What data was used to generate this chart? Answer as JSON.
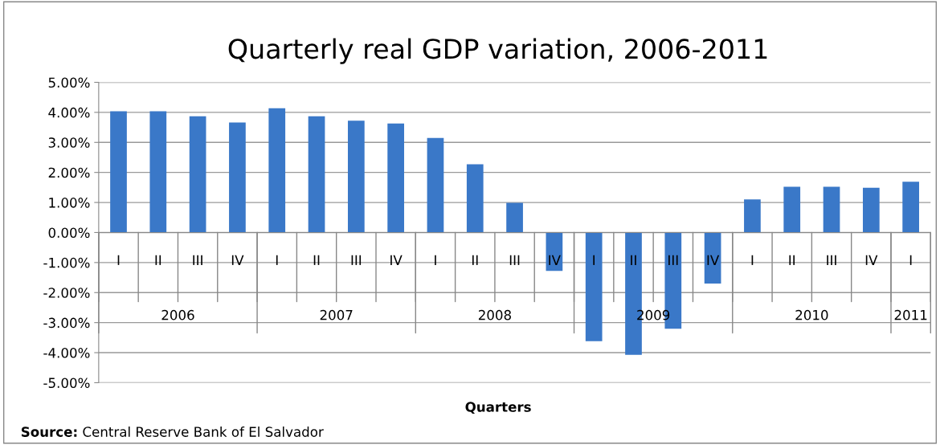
{
  "chart_data": {
    "type": "bar",
    "title": "Quarterly real GDP variation, 2006-2011",
    "xlabel": "Quarters",
    "categories": [
      "I",
      "II",
      "III",
      "IV",
      "I",
      "II",
      "III",
      "IV",
      "I",
      "II",
      "III",
      "IV",
      "I",
      "II",
      "III",
      "IV",
      "I",
      "II",
      "III",
      "IV",
      "I"
    ],
    "values": [
      4.04,
      4.04,
      3.87,
      3.66,
      4.14,
      3.87,
      3.72,
      3.63,
      3.15,
      2.27,
      0.99,
      -1.28,
      -3.62,
      -4.07,
      -3.2,
      -1.7,
      1.1,
      1.52,
      1.52,
      1.49,
      1.69
    ],
    "color": "#3a78c8",
    "ylim": [
      -5,
      5
    ],
    "yticks": [
      {
        "value": -5,
        "label": "-5.00%"
      },
      {
        "value": -4,
        "label": "-4.00%"
      },
      {
        "value": -3,
        "label": "-3.00%"
      },
      {
        "value": -2,
        "label": "-2.00%"
      },
      {
        "value": -1,
        "label": "-1.00%"
      },
      {
        "value": 0,
        "label": "0.00%"
      },
      {
        "value": 1,
        "label": "1.00%"
      },
      {
        "value": 2,
        "label": "2.00%"
      },
      {
        "value": 3,
        "label": "3.00%"
      },
      {
        "value": 4,
        "label": "4.00%"
      },
      {
        "value": 5,
        "label": "5.00%"
      }
    ],
    "grid": "y",
    "annotations": [
      "2006",
      "2007",
      "2008",
      "2009",
      "2010",
      "2011",
      "Source: Central Reserve Bank of El Salvador"
    ]
  }
}
